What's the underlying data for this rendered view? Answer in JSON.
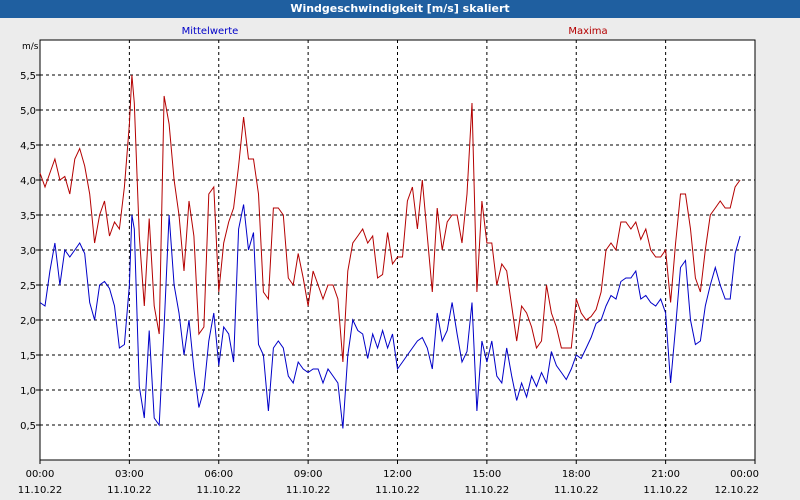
{
  "window": {
    "title": "Windgeschwindigkeit [m/s] skaliert"
  },
  "colors": {
    "mean": "#0000c8",
    "max": "#b40000",
    "grid": "#000000",
    "background": "#ececec"
  },
  "chart_data": {
    "type": "line",
    "title": "Windgeschwindigkeit [m/s] skaliert",
    "ylabel": "m/s",
    "xlabel": "",
    "ylim": [
      0,
      6
    ],
    "y_ticks": [
      "0,5",
      "1,0",
      "1,5",
      "2,0",
      "2,5",
      "3,0",
      "3,5",
      "4,0",
      "4,5",
      "5,0",
      "5,5"
    ],
    "x_ticks": [
      {
        "time": "00:00",
        "date": "11.10.22"
      },
      {
        "time": "03:00",
        "date": "11.10.22"
      },
      {
        "time": "06:00",
        "date": "11.10.22"
      },
      {
        "time": "09:00",
        "date": "11.10.22"
      },
      {
        "time": "12:00",
        "date": "11.10.22"
      },
      {
        "time": "15:00",
        "date": "11.10.22"
      },
      {
        "time": "18:00",
        "date": "11.10.22"
      },
      {
        "time": "21:00",
        "date": "11.10.22"
      },
      {
        "time": "00:00",
        "date": "12.10.22"
      }
    ],
    "grid": true,
    "legend_position": "top",
    "series": [
      {
        "name": "Mittelwerte",
        "color": "#0000c8",
        "points": [
          [
            "00:00",
            2.25
          ],
          [
            "00:10",
            2.2
          ],
          [
            "00:20",
            2.7
          ],
          [
            "00:30",
            3.1
          ],
          [
            "00:40",
            2.5
          ],
          [
            "00:50",
            3.0
          ],
          [
            "01:00",
            2.9
          ],
          [
            "01:10",
            3.0
          ],
          [
            "01:20",
            3.1
          ],
          [
            "01:30",
            2.95
          ],
          [
            "01:40",
            2.25
          ],
          [
            "01:50",
            2.0
          ],
          [
            "02:00",
            2.5
          ],
          [
            "02:10",
            2.55
          ],
          [
            "02:20",
            2.45
          ],
          [
            "02:30",
            2.2
          ],
          [
            "02:40",
            1.6
          ],
          [
            "02:50",
            1.65
          ],
          [
            "03:00",
            2.5
          ],
          [
            "03:05",
            3.5
          ],
          [
            "03:10",
            3.3
          ],
          [
            "03:20",
            1.05
          ],
          [
            "03:30",
            0.6
          ],
          [
            "03:40",
            1.85
          ],
          [
            "03:50",
            0.6
          ],
          [
            "04:00",
            0.5
          ],
          [
            "04:10",
            1.9
          ],
          [
            "04:20",
            3.5
          ],
          [
            "04:30",
            2.5
          ],
          [
            "04:40",
            2.1
          ],
          [
            "04:50",
            1.5
          ],
          [
            "05:00",
            2.0
          ],
          [
            "05:10",
            1.3
          ],
          [
            "05:20",
            0.75
          ],
          [
            "05:30",
            1.0
          ],
          [
            "05:40",
            1.7
          ],
          [
            "05:50",
            2.1
          ],
          [
            "06:00",
            1.35
          ],
          [
            "06:10",
            1.9
          ],
          [
            "06:20",
            1.8
          ],
          [
            "06:30",
            1.4
          ],
          [
            "06:40",
            3.3
          ],
          [
            "06:50",
            3.65
          ],
          [
            "07:00",
            3.0
          ],
          [
            "07:10",
            3.25
          ],
          [
            "07:20",
            1.65
          ],
          [
            "07:30",
            1.5
          ],
          [
            "07:40",
            0.7
          ],
          [
            "07:50",
            1.6
          ],
          [
            "08:00",
            1.7
          ],
          [
            "08:10",
            1.6
          ],
          [
            "08:20",
            1.2
          ],
          [
            "08:30",
            1.1
          ],
          [
            "08:40",
            1.4
          ],
          [
            "08:50",
            1.3
          ],
          [
            "09:00",
            1.25
          ],
          [
            "09:10",
            1.3
          ],
          [
            "09:20",
            1.3
          ],
          [
            "09:30",
            1.1
          ],
          [
            "09:40",
            1.3
          ],
          [
            "09:50",
            1.2
          ],
          [
            "10:00",
            1.1
          ],
          [
            "10:10",
            0.45
          ],
          [
            "10:20",
            1.5
          ],
          [
            "10:30",
            2.0
          ],
          [
            "10:40",
            1.85
          ],
          [
            "10:50",
            1.8
          ],
          [
            "11:00",
            1.45
          ],
          [
            "11:10",
            1.8
          ],
          [
            "11:20",
            1.6
          ],
          [
            "11:30",
            1.85
          ],
          [
            "11:40",
            1.6
          ],
          [
            "11:50",
            1.8
          ],
          [
            "12:00",
            1.3
          ],
          [
            "12:10",
            1.4
          ],
          [
            "12:20",
            1.5
          ],
          [
            "12:30",
            1.6
          ],
          [
            "12:40",
            1.7
          ],
          [
            "12:50",
            1.75
          ],
          [
            "13:00",
            1.6
          ],
          [
            "13:10",
            1.3
          ],
          [
            "13:20",
            2.1
          ],
          [
            "13:30",
            1.7
          ],
          [
            "13:40",
            1.85
          ],
          [
            "13:50",
            2.25
          ],
          [
            "14:00",
            1.8
          ],
          [
            "14:10",
            1.4
          ],
          [
            "14:20",
            1.55
          ],
          [
            "14:30",
            2.25
          ],
          [
            "14:40",
            0.7
          ],
          [
            "14:50",
            1.7
          ],
          [
            "15:00",
            1.4
          ],
          [
            "15:10",
            1.7
          ],
          [
            "15:20",
            1.2
          ],
          [
            "15:30",
            1.1
          ],
          [
            "15:40",
            1.6
          ],
          [
            "15:50",
            1.2
          ],
          [
            "16:00",
            0.85
          ],
          [
            "16:10",
            1.1
          ],
          [
            "16:20",
            0.9
          ],
          [
            "16:30",
            1.2
          ],
          [
            "16:40",
            1.05
          ],
          [
            "16:50",
            1.25
          ],
          [
            "17:00",
            1.1
          ],
          [
            "17:10",
            1.55
          ],
          [
            "17:20",
            1.35
          ],
          [
            "17:30",
            1.25
          ],
          [
            "17:40",
            1.15
          ],
          [
            "17:50",
            1.3
          ],
          [
            "18:00",
            1.5
          ],
          [
            "18:10",
            1.45
          ],
          [
            "18:20",
            1.6
          ],
          [
            "18:30",
            1.75
          ],
          [
            "18:40",
            1.95
          ],
          [
            "18:50",
            2.0
          ],
          [
            "19:00",
            2.2
          ],
          [
            "19:10",
            2.35
          ],
          [
            "19:20",
            2.3
          ],
          [
            "19:30",
            2.55
          ],
          [
            "19:40",
            2.6
          ],
          [
            "19:50",
            2.6
          ],
          [
            "20:00",
            2.7
          ],
          [
            "20:10",
            2.3
          ],
          [
            "20:20",
            2.35
          ],
          [
            "20:30",
            2.25
          ],
          [
            "20:40",
            2.2
          ],
          [
            "20:50",
            2.3
          ],
          [
            "21:00",
            2.1
          ],
          [
            "21:10",
            1.1
          ],
          [
            "21:20",
            1.9
          ],
          [
            "21:30",
            2.75
          ],
          [
            "21:40",
            2.85
          ],
          [
            "21:50",
            2.0
          ],
          [
            "22:00",
            1.65
          ],
          [
            "22:10",
            1.7
          ],
          [
            "22:20",
            2.2
          ],
          [
            "22:30",
            2.5
          ],
          [
            "22:40",
            2.75
          ],
          [
            "22:50",
            2.5
          ],
          [
            "23:00",
            2.3
          ],
          [
            "23:10",
            2.3
          ],
          [
            "23:20",
            2.95
          ],
          [
            "23:30",
            3.2
          ]
        ]
      },
      {
        "name": "Maxima",
        "color": "#b40000",
        "points": [
          [
            "00:00",
            4.1
          ],
          [
            "00:10",
            3.9
          ],
          [
            "00:20",
            4.1
          ],
          [
            "00:30",
            4.3
          ],
          [
            "00:40",
            4.0
          ],
          [
            "00:50",
            4.05
          ],
          [
            "01:00",
            3.8
          ],
          [
            "01:10",
            4.3
          ],
          [
            "01:20",
            4.45
          ],
          [
            "01:30",
            4.2
          ],
          [
            "01:40",
            3.8
          ],
          [
            "01:50",
            3.1
          ],
          [
            "02:00",
            3.5
          ],
          [
            "02:10",
            3.7
          ],
          [
            "02:20",
            3.2
          ],
          [
            "02:30",
            3.4
          ],
          [
            "02:40",
            3.3
          ],
          [
            "02:50",
            3.9
          ],
          [
            "03:00",
            4.8
          ],
          [
            "03:05",
            5.5
          ],
          [
            "03:10",
            5.1
          ],
          [
            "03:20",
            3.2
          ],
          [
            "03:30",
            2.2
          ],
          [
            "03:40",
            3.45
          ],
          [
            "03:50",
            2.2
          ],
          [
            "04:00",
            1.8
          ],
          [
            "04:10",
            5.2
          ],
          [
            "04:20",
            4.8
          ],
          [
            "04:30",
            4.0
          ],
          [
            "04:40",
            3.5
          ],
          [
            "04:50",
            2.7
          ],
          [
            "05:00",
            3.7
          ],
          [
            "05:10",
            3.2
          ],
          [
            "05:20",
            1.8
          ],
          [
            "05:30",
            1.9
          ],
          [
            "05:40",
            3.8
          ],
          [
            "05:50",
            3.9
          ],
          [
            "06:00",
            2.4
          ],
          [
            "06:10",
            3.1
          ],
          [
            "06:20",
            3.4
          ],
          [
            "06:30",
            3.6
          ],
          [
            "06:40",
            4.2
          ],
          [
            "06:50",
            4.9
          ],
          [
            "07:00",
            4.3
          ],
          [
            "07:10",
            4.3
          ],
          [
            "07:20",
            3.8
          ],
          [
            "07:30",
            2.4
          ],
          [
            "07:40",
            2.3
          ],
          [
            "07:50",
            3.6
          ],
          [
            "08:00",
            3.6
          ],
          [
            "08:10",
            3.5
          ],
          [
            "08:20",
            2.6
          ],
          [
            "08:30",
            2.5
          ],
          [
            "08:40",
            2.95
          ],
          [
            "08:50",
            2.6
          ],
          [
            "09:00",
            2.2
          ],
          [
            "09:10",
            2.7
          ],
          [
            "09:20",
            2.5
          ],
          [
            "09:30",
            2.3
          ],
          [
            "09:40",
            2.5
          ],
          [
            "09:50",
            2.5
          ],
          [
            "10:00",
            2.3
          ],
          [
            "10:10",
            1.4
          ],
          [
            "10:20",
            2.7
          ],
          [
            "10:30",
            3.1
          ],
          [
            "10:40",
            3.2
          ],
          [
            "10:50",
            3.3
          ],
          [
            "11:00",
            3.1
          ],
          [
            "11:10",
            3.2
          ],
          [
            "11:20",
            2.6
          ],
          [
            "11:30",
            2.65
          ],
          [
            "11:40",
            3.25
          ],
          [
            "11:50",
            2.8
          ],
          [
            "12:00",
            2.9
          ],
          [
            "12:10",
            2.9
          ],
          [
            "12:20",
            3.7
          ],
          [
            "12:30",
            3.9
          ],
          [
            "12:40",
            3.3
          ],
          [
            "12:50",
            4.0
          ],
          [
            "13:00",
            3.2
          ],
          [
            "13:10",
            2.4
          ],
          [
            "13:20",
            3.6
          ],
          [
            "13:30",
            3.0
          ],
          [
            "13:40",
            3.4
          ],
          [
            "13:50",
            3.5
          ],
          [
            "14:00",
            3.5
          ],
          [
            "14:10",
            3.1
          ],
          [
            "14:20",
            3.8
          ],
          [
            "14:30",
            5.1
          ],
          [
            "14:40",
            2.4
          ],
          [
            "14:50",
            3.7
          ],
          [
            "15:00",
            3.1
          ],
          [
            "15:10",
            3.1
          ],
          [
            "15:20",
            2.5
          ],
          [
            "15:30",
            2.8
          ],
          [
            "15:40",
            2.7
          ],
          [
            "15:50",
            2.2
          ],
          [
            "16:00",
            1.7
          ],
          [
            "16:10",
            2.2
          ],
          [
            "16:20",
            2.1
          ],
          [
            "16:30",
            1.9
          ],
          [
            "16:40",
            1.6
          ],
          [
            "16:50",
            1.7
          ],
          [
            "17:00",
            2.5
          ],
          [
            "17:10",
            2.1
          ],
          [
            "17:20",
            1.9
          ],
          [
            "17:30",
            1.6
          ],
          [
            "17:40",
            1.6
          ],
          [
            "17:50",
            1.6
          ],
          [
            "18:00",
            2.3
          ],
          [
            "18:10",
            2.1
          ],
          [
            "18:20",
            2.0
          ],
          [
            "18:30",
            2.05
          ],
          [
            "18:40",
            2.15
          ],
          [
            "18:50",
            2.4
          ],
          [
            "19:00",
            3.0
          ],
          [
            "19:10",
            3.1
          ],
          [
            "19:20",
            3.0
          ],
          [
            "19:30",
            3.4
          ],
          [
            "19:40",
            3.4
          ],
          [
            "19:50",
            3.3
          ],
          [
            "20:00",
            3.4
          ],
          [
            "20:10",
            3.15
          ],
          [
            "20:20",
            3.3
          ],
          [
            "20:30",
            3.0
          ],
          [
            "20:40",
            2.9
          ],
          [
            "20:50",
            2.9
          ],
          [
            "21:00",
            3.0
          ],
          [
            "21:10",
            2.25
          ],
          [
            "21:20",
            3.1
          ],
          [
            "21:30",
            3.8
          ],
          [
            "21:40",
            3.8
          ],
          [
            "21:50",
            3.3
          ],
          [
            "22:00",
            2.6
          ],
          [
            "22:10",
            2.4
          ],
          [
            "22:20",
            3.0
          ],
          [
            "22:30",
            3.5
          ],
          [
            "22:40",
            3.6
          ],
          [
            "22:50",
            3.7
          ],
          [
            "23:00",
            3.6
          ],
          [
            "23:10",
            3.6
          ],
          [
            "23:20",
            3.9
          ],
          [
            "23:30",
            4.0
          ]
        ]
      }
    ]
  }
}
